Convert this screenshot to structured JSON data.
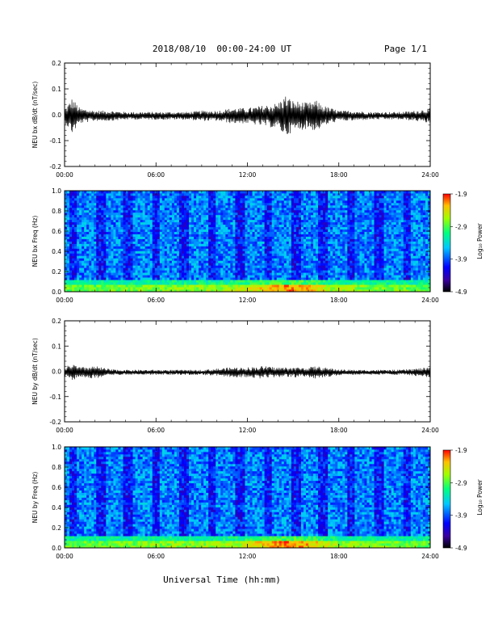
{
  "header": {
    "title": "2018/08/10  00:00-24:00 UT",
    "page": "Page 1/1"
  },
  "x_axis": {
    "title": "Universal Time (hh:mm)",
    "range_hours": [
      0,
      24
    ],
    "tick_labels": [
      "00:00",
      "06:00",
      "12:00",
      "18:00",
      "24:00"
    ]
  },
  "chart_data": [
    {
      "type": "line",
      "ylabel": "NEU bx dB/dt (nT/sec)",
      "ylim": [
        -0.2,
        0.2
      ],
      "y_ticks": [
        -0.2,
        -0.1,
        0.0,
        0.1,
        0.2
      ],
      "y_tick_labels": [
        "-0.2",
        "-0.1",
        "0.0",
        "0.1",
        "0.2"
      ],
      "color": "#000000",
      "envelope": {
        "x_hours": [
          0,
          0.5,
          1,
          2,
          3,
          4,
          5,
          6,
          7,
          8,
          9,
          10,
          11,
          12,
          13,
          14,
          14.5,
          15,
          16,
          16.5,
          17,
          18,
          19,
          20,
          21,
          22,
          23,
          24
        ],
        "amplitude": [
          0.025,
          0.07,
          0.03,
          0.02,
          0.02,
          0.015,
          0.015,
          0.015,
          0.015,
          0.015,
          0.02,
          0.02,
          0.03,
          0.03,
          0.04,
          0.05,
          0.08,
          0.06,
          0.05,
          0.06,
          0.04,
          0.02,
          0.02,
          0.015,
          0.015,
          0.015,
          0.02,
          0.03
        ]
      }
    },
    {
      "type": "heatmap",
      "ylabel": "NEU bx Freq (Hz)",
      "ylim": [
        0.0,
        1.0
      ],
      "y_ticks": [
        0.0,
        0.2,
        0.4,
        0.6,
        0.8,
        1.0
      ],
      "y_tick_labels": [
        "0.0",
        "0.2",
        "0.4",
        "0.6",
        "0.8",
        "1.0"
      ],
      "colorbar": {
        "label": "Log₁₀ Power",
        "min": -4.9,
        "max": -1.9,
        "tick_values": [
          -1.9,
          -2.9,
          -3.9,
          -4.9
        ],
        "tick_labels": [
          "-1.9",
          "-2.9",
          "-3.9",
          "-4.9"
        ]
      }
    },
    {
      "type": "line",
      "ylabel": "NEU by dB/dt (nT/sec)",
      "ylim": [
        -0.2,
        0.2
      ],
      "y_ticks": [
        -0.2,
        -0.1,
        0.0,
        0.1,
        0.2
      ],
      "y_tick_labels": [
        "-0.2",
        "-0.1",
        "0.0",
        "0.1",
        "0.2"
      ],
      "color": "#000000",
      "envelope": {
        "x_hours": [
          0,
          0.5,
          1,
          2,
          3,
          4,
          5,
          6,
          7,
          8,
          9,
          10,
          11,
          12,
          13,
          14,
          14.5,
          15,
          16,
          16.5,
          17,
          18,
          19,
          20,
          21,
          22,
          23,
          24
        ],
        "amplitude": [
          0.02,
          0.035,
          0.02,
          0.025,
          0.012,
          0.01,
          0.01,
          0.01,
          0.01,
          0.01,
          0.01,
          0.015,
          0.02,
          0.02,
          0.025,
          0.02,
          0.02,
          0.02,
          0.02,
          0.025,
          0.02,
          0.012,
          0.01,
          0.01,
          0.01,
          0.01,
          0.015,
          0.02
        ]
      }
    },
    {
      "type": "heatmap",
      "ylabel": "NEU by Freq (Hz)",
      "ylim": [
        0.0,
        1.0
      ],
      "y_ticks": [
        0.0,
        0.2,
        0.4,
        0.6,
        0.8,
        1.0
      ],
      "y_tick_labels": [
        "0.0",
        "0.2",
        "0.4",
        "0.6",
        "0.8",
        "1.0"
      ],
      "colorbar": {
        "label": "Log₁₀ Power",
        "min": -4.9,
        "max": -1.9,
        "tick_values": [
          -1.9,
          -2.9,
          -3.9,
          -4.9
        ],
        "tick_labels": [
          "-1.9",
          "-2.9",
          "-3.9",
          "-4.9"
        ]
      }
    }
  ]
}
